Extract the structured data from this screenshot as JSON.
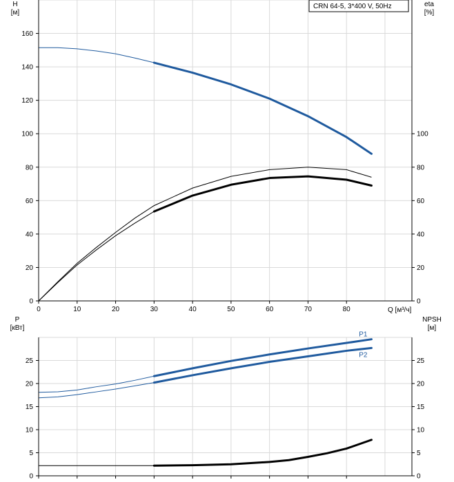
{
  "chart_data": [
    {
      "type": "line",
      "title": "CRN 64-5, 3*400 V, 50Hz",
      "xlabel": "Q [м³/ч]",
      "ylabel_left": "H\n[м]",
      "ylabel_right": "eta\n[%]",
      "xlim": [
        0,
        97
      ],
      "ylim": [
        0,
        180
      ],
      "right_ylim": [
        0,
        180
      ],
      "x_ticks": [
        0,
        10,
        20,
        30,
        40,
        50,
        60,
        70,
        80
      ],
      "y_ticks_left": [
        0,
        20,
        40,
        60,
        80,
        100,
        120,
        140,
        160
      ],
      "y_ticks_right": [
        0,
        20,
        40,
        60,
        80,
        100
      ],
      "grid": true,
      "series": [
        {
          "color": "#1f5a9e",
          "thin_points": [
            [
              0,
              151.5
            ],
            [
              5,
              151.5
            ],
            [
              10,
              150.8
            ],
            [
              15,
              149.5
            ],
            [
              20,
              147.8
            ],
            [
              25,
              145.3
            ],
            [
              30,
              142.5
            ]
          ],
          "thick_points": [
            [
              30,
              142.5
            ],
            [
              40,
              136.5
            ],
            [
              50,
              129.5
            ],
            [
              60,
              121
            ],
            [
              70,
              110.5
            ],
            [
              80,
              98
            ],
            [
              86.5,
              88
            ]
          ]
        },
        {
          "color": "#000000",
          "thin_points": [
            [
              0,
              0
            ],
            [
              5,
              11
            ],
            [
              10,
              21.5
            ],
            [
              15,
              30.5
            ],
            [
              20,
              39
            ],
            [
              25,
              46.5
            ],
            [
              30,
              53.5
            ]
          ],
          "thick_points": [
            [
              30,
              53.5
            ],
            [
              40,
              63
            ],
            [
              50,
              69.5
            ],
            [
              60,
              73.5
            ],
            [
              70,
              74.5
            ],
            [
              80,
              72.5
            ],
            [
              86.5,
              69
            ]
          ]
        },
        {
          "color": "#000000",
          "thin_points": [
            [
              0,
              0
            ],
            [
              5,
              11.5
            ],
            [
              10,
              22.5
            ],
            [
              15,
              32
            ],
            [
              20,
              41
            ],
            [
              25,
              49.5
            ],
            [
              30,
              57
            ],
            [
              40,
              67.5
            ],
            [
              50,
              74.5
            ],
            [
              60,
              78.5
            ],
            [
              70,
              80
            ],
            [
              80,
              78.5
            ],
            [
              86.5,
              74
            ]
          ],
          "thick_points": []
        }
      ]
    },
    {
      "type": "line",
      "ylabel_left": "P\n[кВт]",
      "ylabel_right": "NPSH\n[м]",
      "xlim": [
        0,
        97
      ],
      "ylim": [
        0,
        30
      ],
      "y_ticks_left": [
        0,
        5,
        10,
        15,
        20,
        25
      ],
      "y_ticks_right": [
        0,
        5,
        10,
        15,
        20,
        25
      ],
      "grid": true,
      "series": [
        {
          "name": "P1",
          "color": "#1f5a9e",
          "thin_points": [
            [
              0,
              18.1
            ],
            [
              5,
              18.2
            ],
            [
              10,
              18.6
            ],
            [
              15,
              19.3
            ],
            [
              20,
              19.9
            ],
            [
              25,
              20.7
            ],
            [
              30,
              21.6
            ]
          ],
          "thick_points": [
            [
              30,
              21.6
            ],
            [
              40,
              23.3
            ],
            [
              50,
              24.9
            ],
            [
              60,
              26.3
            ],
            [
              70,
              27.6
            ],
            [
              80,
              28.8
            ],
            [
              86.5,
              29.6
            ]
          ]
        },
        {
          "name": "P2",
          "color": "#1f5a9e",
          "thin_points": [
            [
              0,
              16.9
            ],
            [
              5,
              17.1
            ],
            [
              10,
              17.6
            ],
            [
              15,
              18.2
            ],
            [
              20,
              18.8
            ],
            [
              25,
              19.5
            ],
            [
              30,
              20.2
            ]
          ],
          "thick_points": [
            [
              30,
              20.2
            ],
            [
              40,
              21.8
            ],
            [
              50,
              23.3
            ],
            [
              60,
              24.7
            ],
            [
              70,
              25.9
            ],
            [
              80,
              27.1
            ],
            [
              86.5,
              27.7
            ]
          ]
        },
        {
          "color": "#000000",
          "thin_points": [
            [
              0,
              2.2
            ],
            [
              30,
              2.2
            ]
          ],
          "thick_points": [
            [
              30,
              2.2
            ],
            [
              40,
              2.3
            ],
            [
              50,
              2.5
            ],
            [
              60,
              3.0
            ],
            [
              65,
              3.4
            ],
            [
              70,
              4.1
            ],
            [
              75,
              4.9
            ],
            [
              80,
              5.9
            ],
            [
              86.5,
              7.8
            ]
          ]
        }
      ]
    }
  ]
}
